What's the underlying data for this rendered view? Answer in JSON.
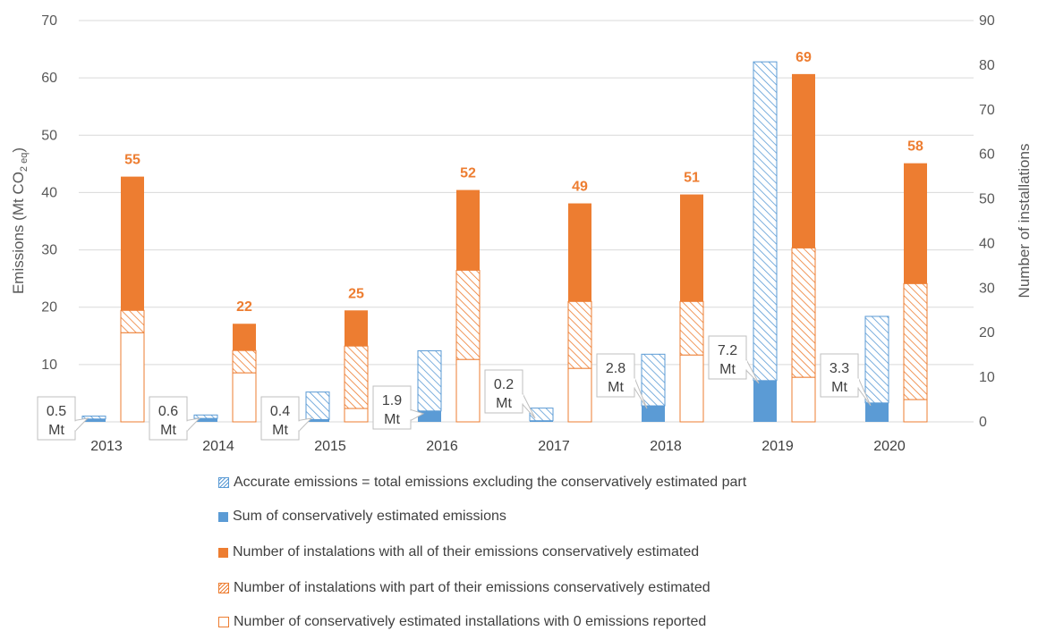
{
  "chart_data": {
    "type": "bar",
    "categories": [
      "2013",
      "2014",
      "2015",
      "2016",
      "2017",
      "2018",
      "2019",
      "2020"
    ],
    "y_left": {
      "label": "Emissions (Mt CO",
      "label_sub": "2 eq",
      "label_close": ")",
      "ylim": [
        0,
        70
      ],
      "ticks": [
        "0",
        "10",
        "20",
        "30",
        "40",
        "50",
        "60",
        "70"
      ]
    },
    "y_right": {
      "label": "Number of installations",
      "ylim": [
        0,
        90
      ],
      "ticks": [
        "0",
        "10",
        "20",
        "30",
        "40",
        "50",
        "60",
        "70",
        "80",
        "90"
      ]
    },
    "emissions_series": [
      {
        "name": "Accurate emissions = total emissions excluding the conservatively estimated part",
        "color": "#5b9bd5",
        "pattern": "hatched",
        "values": [
          0.5,
          0.6,
          4.8,
          10.5,
          2.2,
          9.0,
          55.6,
          15.1
        ]
      },
      {
        "name": "Sum of conservatively estimated emissions",
        "color": "#5b9bd5",
        "pattern": "solid",
        "values": [
          0.5,
          0.6,
          0.4,
          1.9,
          0.2,
          2.8,
          7.2,
          3.3
        ]
      }
    ],
    "installation_series": [
      {
        "name": "Number of instalations with all of their emissions conservatively estimated",
        "color": "#ed7d31",
        "pattern": "solid",
        "values": [
          30,
          6,
          8,
          18,
          22,
          24,
          39,
          27
        ]
      },
      {
        "name": "Number of instalations with part of their emissions conservatively estimated",
        "color": "#ed7d31",
        "pattern": "hatched",
        "values": [
          5,
          5,
          14,
          20,
          15,
          12,
          29,
          26
        ]
      },
      {
        "name": "Number of conservatively estimated installations with 0 emissions reported",
        "color": "#ed7d31",
        "pattern": "outline",
        "values": [
          20,
          11,
          3,
          14,
          12,
          15,
          10,
          5
        ]
      }
    ],
    "installation_totals": [
      "55",
      "22",
      "25",
      "52",
      "49",
      "51",
      "69",
      "58"
    ],
    "callouts": [
      {
        "value": "0.5",
        "unit": "Mt"
      },
      {
        "value": "0.6",
        "unit": "Mt"
      },
      {
        "value": "0.4",
        "unit": "Mt"
      },
      {
        "value": "1.9",
        "unit": "Mt"
      },
      {
        "value": "0.2",
        "unit": "Mt"
      },
      {
        "value": "2.8",
        "unit": "Mt"
      },
      {
        "value": "7.2",
        "unit": "Mt"
      },
      {
        "value": "3.3",
        "unit": "Mt"
      }
    ],
    "legend": [
      "Accurate emissions = total emissions excluding the conservatively estimated part",
      "Sum of conservatively estimated emissions",
      "Number of instalations with all of their emissions conservatively estimated",
      "Number of instalations with part of their emissions conservatively estimated",
      "Number of conservatively estimated installations with 0 emissions reported"
    ],
    "legend_placement": "bottom",
    "grid": true
  }
}
